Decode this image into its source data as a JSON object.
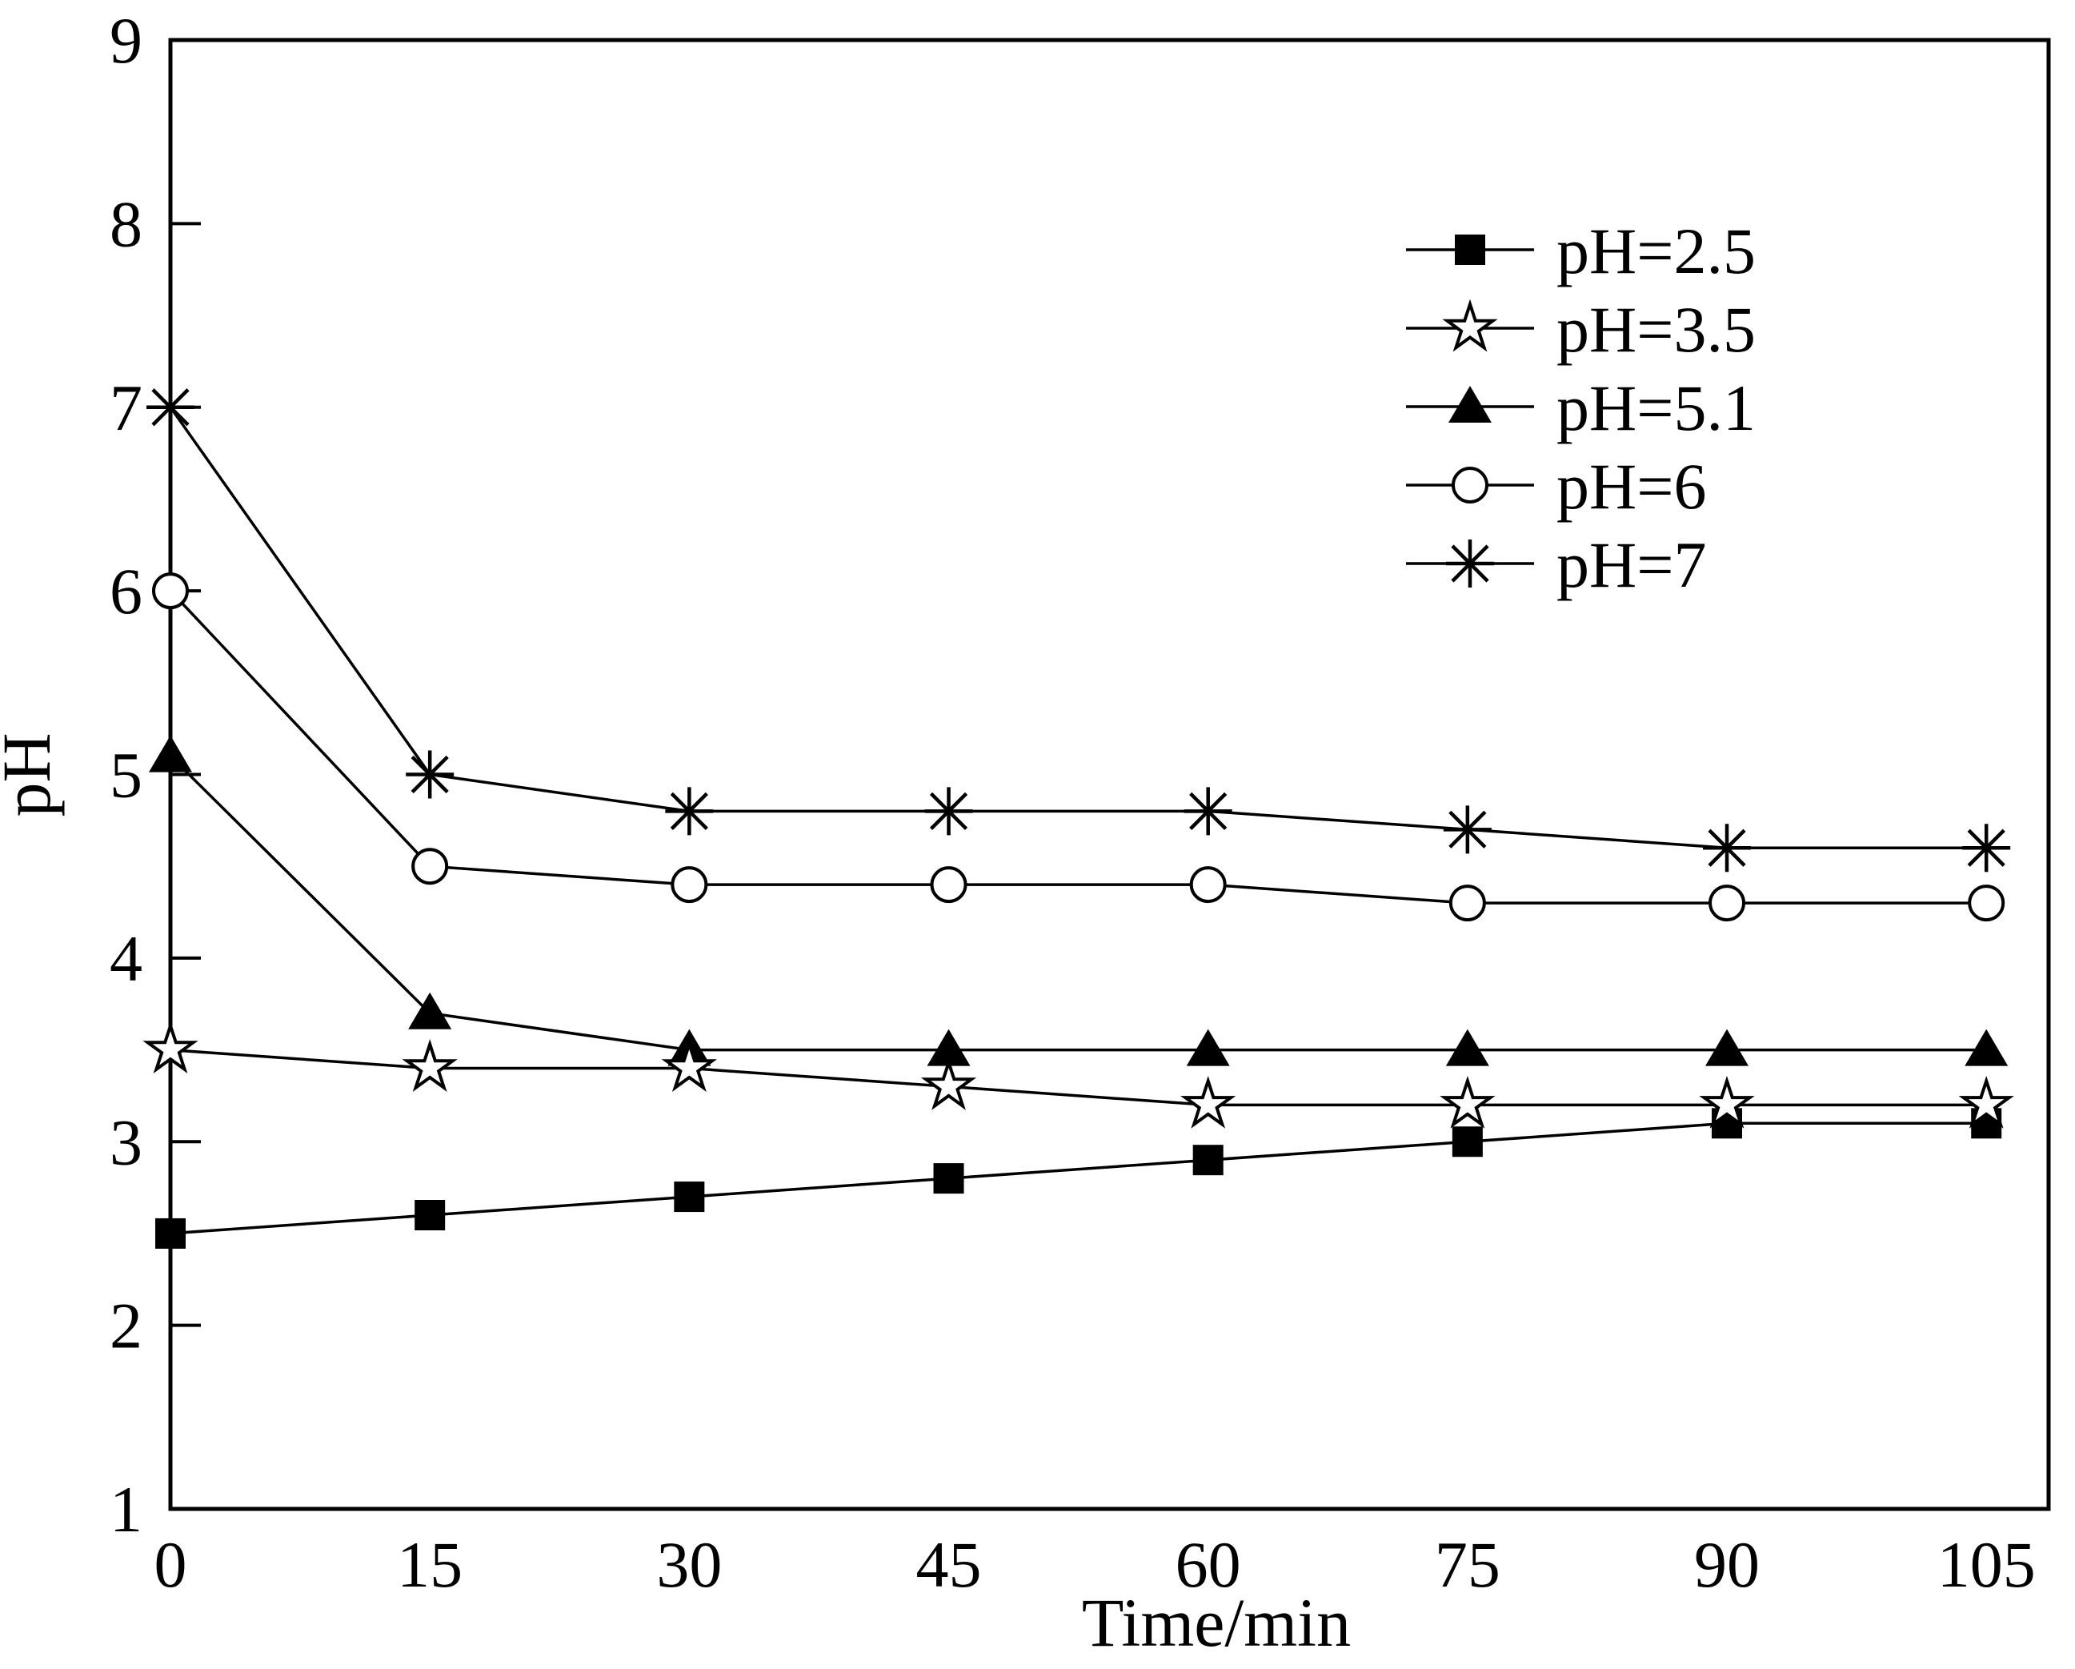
{
  "figure": {
    "background": "#ffffff",
    "ink_color": "#000000"
  },
  "chart_data": {
    "type": "line",
    "title": "",
    "xlabel": "Time/min",
    "ylabel": "pH",
    "x": [
      0,
      15,
      30,
      45,
      60,
      75,
      90,
      105
    ],
    "x_tick_labels": [
      "0",
      "15",
      "30",
      "45",
      "60",
      "75",
      "90",
      "105"
    ],
    "y_tick_labels": [
      "1",
      "2",
      "3",
      "4",
      "5",
      "6",
      "7",
      "8",
      "9"
    ],
    "y_ticks": [
      1,
      2,
      3,
      4,
      5,
      6,
      7,
      8,
      9
    ],
    "xlim": [
      0,
      108.6
    ],
    "ylim": [
      1,
      9
    ],
    "grid": false,
    "legend_position": "upper-right-inside",
    "series": [
      {
        "name": "pH=2.5",
        "marker": "filled-square",
        "z": 1,
        "values": [
          2.5,
          2.6,
          2.7,
          2.8,
          2.9,
          3.0,
          3.1,
          3.1
        ]
      },
      {
        "name": "pH=3.5",
        "marker": "open-star",
        "z": 5,
        "values": [
          3.5,
          3.4,
          3.4,
          3.3,
          3.2,
          3.2,
          3.2,
          3.2
        ]
      },
      {
        "name": "pH=5.1",
        "marker": "filled-triangle",
        "z": 2,
        "values": [
          5.1,
          3.7,
          3.5,
          3.5,
          3.5,
          3.5,
          3.5,
          3.5
        ]
      },
      {
        "name": "pH=6",
        "marker": "open-circle",
        "z": 3,
        "values": [
          6.0,
          4.5,
          4.4,
          4.4,
          4.4,
          4.3,
          4.3,
          4.3
        ]
      },
      {
        "name": "pH=7",
        "marker": "asterisk",
        "z": 4,
        "values": [
          7.0,
          5.0,
          4.8,
          4.8,
          4.8,
          4.7,
          4.6,
          4.6
        ]
      }
    ]
  }
}
